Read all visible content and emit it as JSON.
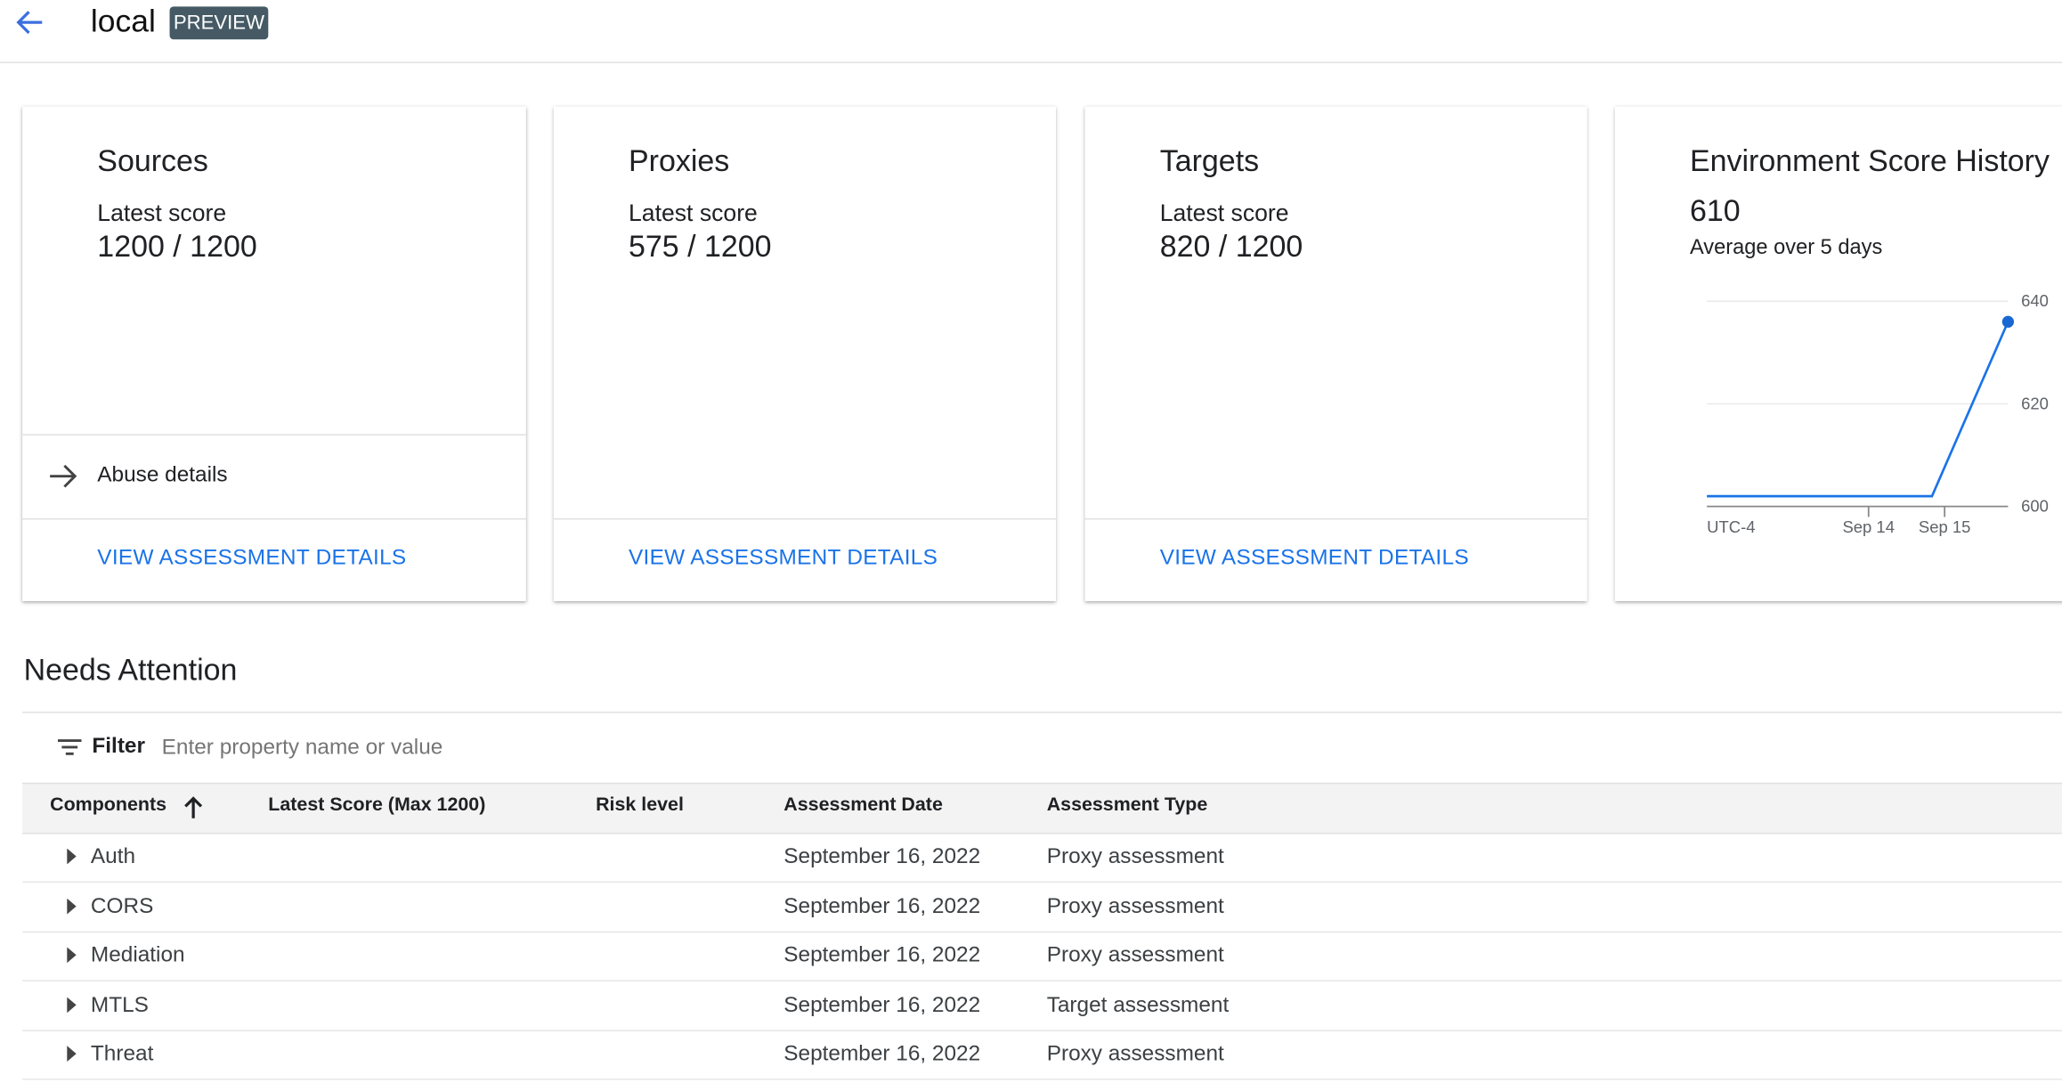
{
  "header": {
    "title": "local",
    "badge": "PREVIEW"
  },
  "cards": [
    {
      "title": "Sources",
      "score_label": "Latest score",
      "score": "1200 / 1200",
      "extra_link": "Abuse details",
      "link": "VIEW ASSESSMENT DETAILS"
    },
    {
      "title": "Proxies",
      "score_label": "Latest score",
      "score": "575 / 1200",
      "link": "VIEW ASSESSMENT DETAILS"
    },
    {
      "title": "Targets",
      "score_label": "Latest score",
      "score": "820 / 1200",
      "link": "VIEW ASSESSMENT DETAILS"
    }
  ],
  "history": {
    "title": "Environment Score History",
    "value": "610",
    "subtitle": "Average over 5 days"
  },
  "chart_data": {
    "type": "line",
    "title": "Environment Score History",
    "x_label_timezone": "UTC-4",
    "x_ticks": [
      "Sep 14",
      "Sep 15"
    ],
    "y_ticks": [
      600,
      620,
      640
    ],
    "ylim": [
      600,
      640
    ],
    "y_axis_side": "right",
    "grid": true,
    "color": "#1a73e8",
    "series": [
      {
        "points": [
          [
            "2022-09-11T21:00",
            602
          ],
          [
            "2022-09-14T20:00",
            602
          ],
          [
            "2022-09-15T20:00",
            636
          ]
        ]
      }
    ]
  },
  "attention": {
    "title": "Needs Attention",
    "filter_label": "Filter",
    "filter_placeholder": "Enter property name or value",
    "columns": [
      "Components",
      "Latest Score (Max 1200)",
      "Risk level",
      "Assessment Date",
      "Assessment Type"
    ],
    "rows": [
      {
        "component": "Auth",
        "score": "",
        "risk": "",
        "date": "September 16, 2022",
        "type": "Proxy assessment"
      },
      {
        "component": "CORS",
        "score": "",
        "risk": "",
        "date": "September 16, 2022",
        "type": "Proxy assessment"
      },
      {
        "component": "Mediation",
        "score": "",
        "risk": "",
        "date": "September 16, 2022",
        "type": "Proxy assessment"
      },
      {
        "component": "MTLS",
        "score": "",
        "risk": "",
        "date": "September 16, 2022",
        "type": "Target assessment"
      },
      {
        "component": "Threat",
        "score": "",
        "risk": "",
        "date": "September 16, 2022",
        "type": "Proxy assessment"
      }
    ]
  }
}
